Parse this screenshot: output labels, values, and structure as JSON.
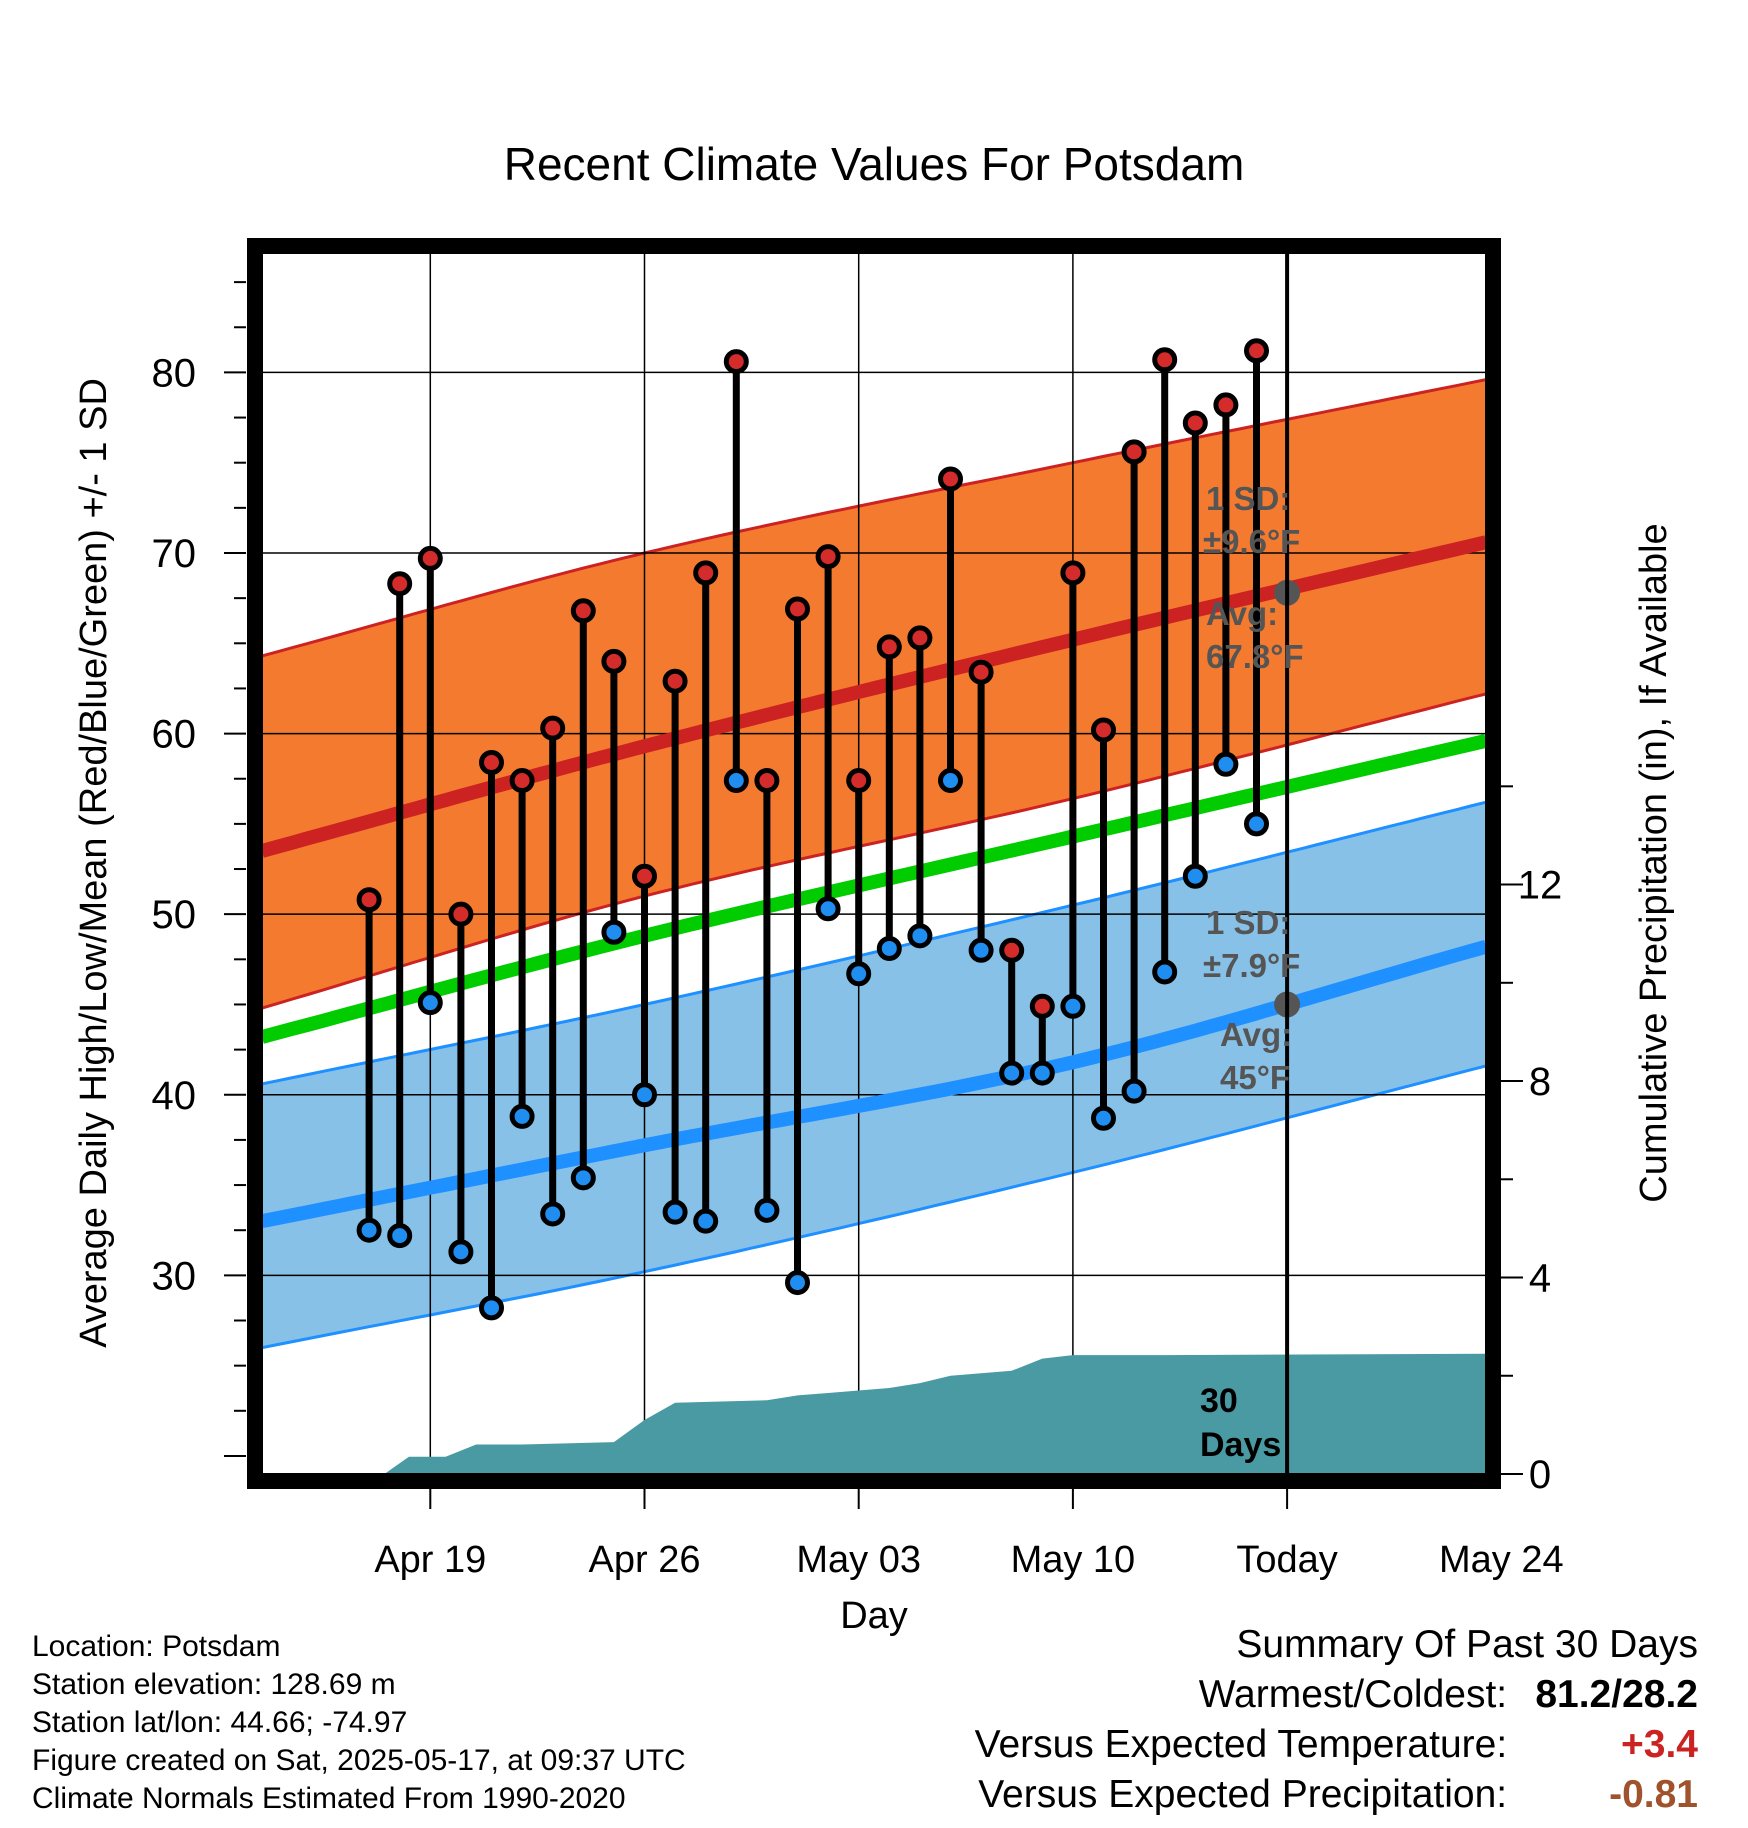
{
  "chart_data": {
    "type": "line",
    "title": "Recent Climate Values For Potsdam",
    "xlabel": "Day",
    "ylabel": "Average Daily High/Low/Mean (Red/Blue/Green) +/- 1 SD",
    "y2label": "Cumulative Precipitation (in), If Available",
    "xlim_days": [
      -33.5,
      6.5
    ],
    "ylim": [
      19,
      87
    ],
    "y2lim": [
      0,
      25
    ],
    "x_ticks": [
      {
        "day": -28,
        "label": "Apr 19"
      },
      {
        "day": -21,
        "label": "Apr 26"
      },
      {
        "day": -14,
        "label": "May 03"
      },
      {
        "day": -7,
        "label": "May 10"
      },
      {
        "day": 0,
        "label": "Today"
      },
      {
        "day": 7,
        "label": "May 24"
      }
    ],
    "y_ticks": [
      30,
      40,
      50,
      60,
      70,
      80
    ],
    "y2_ticks": [
      0,
      4,
      8,
      12
    ],
    "grid": true,
    "normals": {
      "high_mean": [
        [
          -33.5,
          53.5
        ],
        [
          -21,
          59.3
        ],
        [
          -7,
          65.2
        ],
        [
          6.5,
          70.6
        ]
      ],
      "high_band_upper": [
        [
          -33.5,
          64.3
        ],
        [
          -21,
          70.0
        ],
        [
          -7,
          75.0
        ],
        [
          6.5,
          79.6
        ]
      ],
      "high_band_lower": [
        [
          -33.5,
          44.8
        ],
        [
          -21,
          51.0
        ],
        [
          -7,
          56.4
        ],
        [
          6.5,
          62.2
        ]
      ],
      "mean_normal": [
        [
          -33.5,
          43.2
        ],
        [
          -21,
          48.8
        ],
        [
          -7,
          54.3
        ],
        [
          6.5,
          59.6
        ]
      ],
      "low_mean": [
        [
          -33.5,
          33.0
        ],
        [
          -21,
          37.2
        ],
        [
          -7,
          41.8
        ],
        [
          6.5,
          48.2
        ]
      ],
      "low_band_upper": [
        [
          -33.5,
          40.6
        ],
        [
          -21,
          45.0
        ],
        [
          -7,
          50.5
        ],
        [
          6.5,
          56.2
        ]
      ],
      "low_band_lower": [
        [
          -33.5,
          26.0
        ],
        [
          -21,
          30.2
        ],
        [
          -7,
          35.7
        ],
        [
          6.5,
          41.6
        ]
      ]
    },
    "daily_x_days": [
      -30,
      -29,
      -28,
      -27,
      -26,
      -25,
      -24,
      -23,
      -22,
      -21,
      -20,
      -19,
      -18,
      -17,
      -16,
      -15,
      -14,
      -13,
      -12,
      -11,
      -10,
      -9,
      -8,
      -7,
      -6,
      -5,
      -4,
      -3,
      -2,
      -1
    ],
    "daily_highs": [
      50.8,
      68.3,
      69.7,
      50.0,
      58.4,
      57.4,
      60.3,
      66.8,
      64.0,
      52.1,
      62.9,
      68.9,
      80.6,
      57.4,
      66.9,
      69.8,
      57.4,
      64.8,
      65.3,
      74.1,
      63.4,
      48.0,
      44.9,
      68.9,
      60.2,
      75.6,
      80.7,
      77.2,
      78.2,
      81.2
    ],
    "daily_lows": [
      32.5,
      32.2,
      45.1,
      31.3,
      28.2,
      38.8,
      33.4,
      35.4,
      49.0,
      40.0,
      33.5,
      33.0,
      57.4,
      33.6,
      29.6,
      50.3,
      46.7,
      48.1,
      48.8,
      57.4,
      48.0,
      41.2,
      41.2,
      44.9,
      38.7,
      40.2,
      46.8,
      52.1,
      58.3,
      55.0
    ],
    "precip_cumulative": [
      [
        -29.5,
        0.0
      ],
      [
        -28.7,
        0.35
      ],
      [
        -27.5,
        0.35
      ],
      [
        -26.5,
        0.6
      ],
      [
        -25,
        0.6
      ],
      [
        -22,
        0.65
      ],
      [
        -21,
        1.1
      ],
      [
        -20,
        1.45
      ],
      [
        -17,
        1.5
      ],
      [
        -16,
        1.6
      ],
      [
        -15,
        1.65
      ],
      [
        -14,
        1.7
      ],
      [
        -13,
        1.75
      ],
      [
        -12,
        1.85
      ],
      [
        -11,
        2.0
      ],
      [
        -10,
        2.05
      ],
      [
        -9,
        2.1
      ],
      [
        -8,
        2.35
      ],
      [
        -7,
        2.42
      ],
      [
        -4,
        2.42
      ],
      [
        6.5,
        2.45
      ]
    ],
    "annotations": {
      "high_sd": "1 SD:",
      "high_sd_val": "±9.6°F",
      "high_avg": "Avg:",
      "high_avg_val": "67.8°F",
      "high_avg_point": [
        0,
        67.8
      ],
      "low_sd": "1 SD:",
      "low_sd_val": "±7.9°F",
      "low_avg": "Avg:",
      "low_avg_val": "45°F",
      "low_avg_point": [
        0,
        45.0
      ],
      "days_line1": "30",
      "days_line2": "Days"
    },
    "colors": {
      "high_band": "#f47a30",
      "high_line": "#cc2222",
      "low_band": "#87c1e8",
      "low_line": "#1e90ff",
      "mean_line": "#00cc00",
      "precip_fill": "#4a9aa4",
      "high_marker": "#d42b2b",
      "low_marker": "#1f8ef0",
      "annotation_text": "#555555"
    }
  },
  "footer": {
    "location": "Location: Potsdam",
    "elevation": "Station elevation: 128.69 m",
    "latlon": "Station lat/lon: 44.66; -74.97",
    "created": "Figure created on Sat, 2025-05-17, at 09:37 UTC",
    "normals": "Climate Normals Estimated From 1990-2020"
  },
  "summary": {
    "title": "Summary Of Past 30 Days",
    "warm_cold_label": "Warmest/Coldest:",
    "warm_cold_value": "81.2/28.2",
    "temp_label": "Versus Expected Temperature:",
    "temp_value": "+3.4",
    "temp_color": "#cc2222",
    "precip_label": "Versus Expected Precipitation:",
    "precip_value": "-0.81",
    "precip_color": "#a0522d"
  }
}
